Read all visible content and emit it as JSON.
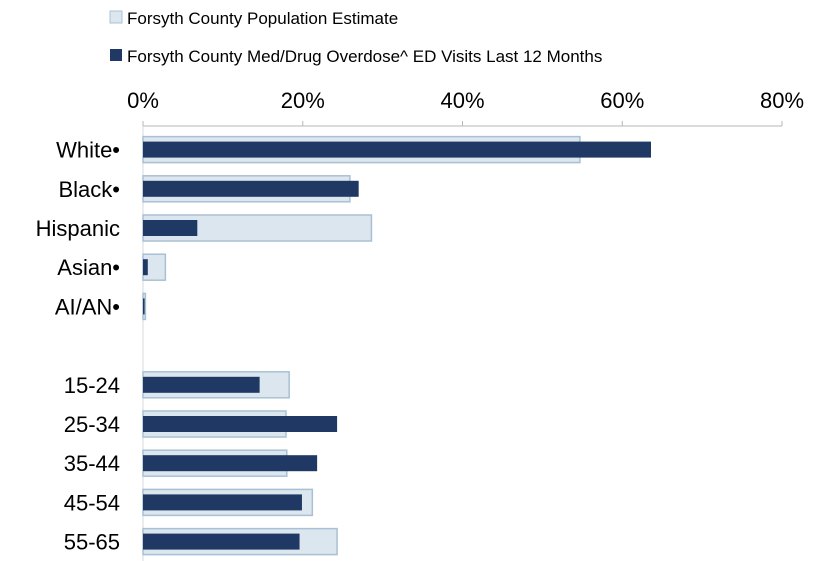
{
  "chart_data": {
    "type": "bar",
    "orientation": "horizontal",
    "title": "",
    "xlabel": "",
    "ylabel": "",
    "xlim": [
      0,
      80
    ],
    "x_ticks": [
      "0%",
      "20%",
      "40%",
      "60%",
      "80%"
    ],
    "axis_position": "top",
    "grid": false,
    "legend_position": "top",
    "categories": [
      "White•",
      "Black•",
      "Hispanic",
      "Asian•",
      "AI/AN•",
      "",
      "15-24",
      "25-34",
      "35-44",
      "45-54",
      "55-65"
    ],
    "series": [
      {
        "name": "Forsyth County Population Estimate",
        "color": "#dce6ee",
        "border_color": "#a9c0d4",
        "values": [
          54.7,
          25.9,
          28.6,
          2.8,
          0.3,
          null,
          18.3,
          17.9,
          18.0,
          21.2,
          24.3
        ]
      },
      {
        "name": "Forsyth County Med/Drug Overdose^ ED Visits Last 12 Months",
        "color": "#1f3864",
        "values": [
          63.6,
          27.0,
          6.8,
          0.6,
          0.2,
          null,
          14.6,
          24.3,
          21.8,
          19.9,
          19.6
        ]
      }
    ]
  }
}
